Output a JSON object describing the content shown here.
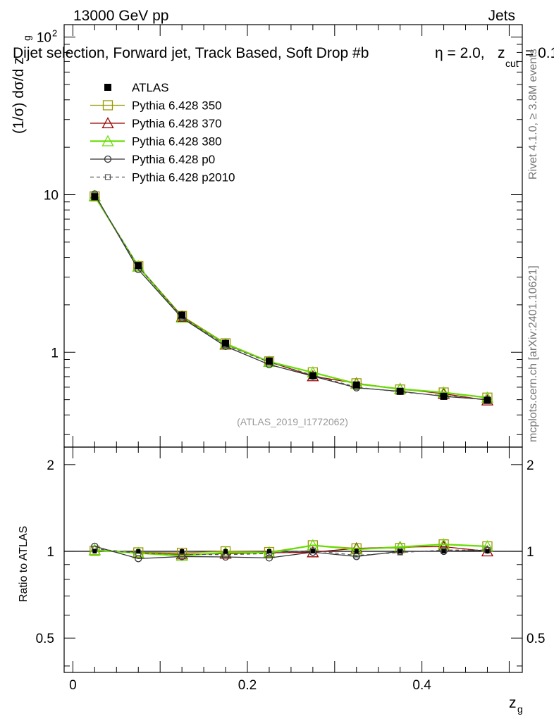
{
  "header": {
    "left": "13000 GeV pp",
    "right": "Jets",
    "selection": "Dijet selection, Forward jet, Track Based, Soft Drop #b",
    "param_eta": "η = 2.0,",
    "param_z": "z",
    "param_z_sub": "cut",
    "param_z_val": "= 0.1"
  },
  "side_labels": {
    "rivet": "Rivet 4.1.0, ≥ 3.8M events",
    "mcplots": "mcplots.cern.ch [arXiv:2401.10621]"
  },
  "watermark": "(ATLAS_2019_I1772062)",
  "axes": {
    "ylabel_main": "(1/σ) dσ/d z",
    "ylabel_main_sub": "g",
    "ylabel_ratio": "Ratio to ATLAS",
    "xlabel": "z",
    "xlabel_sub": "g",
    "yticks_main": [
      {
        "value": 1,
        "label": "1"
      },
      {
        "value": 10,
        "label": "10"
      },
      {
        "value": 100,
        "label": "10",
        "sup": "2"
      }
    ],
    "yticks_ratio": [
      {
        "value": 0.5,
        "label": "0.5"
      },
      {
        "value": 1,
        "label": "1"
      },
      {
        "value": 2,
        "label": "2"
      }
    ],
    "xticks": [
      {
        "value": 0,
        "label": "0"
      },
      {
        "value": 0.2,
        "label": "0.2"
      },
      {
        "value": 0.4,
        "label": "0.4"
      }
    ]
  },
  "legend": [
    {
      "label": "ATLAS",
      "color": "#000000",
      "marker": "filled-square",
      "line": "none"
    },
    {
      "label": "Pythia 6.428 350",
      "color": "#999900",
      "marker": "open-square",
      "line": "solid"
    },
    {
      "label": "Pythia 6.428 370",
      "color": "#990000",
      "marker": "open-triangle",
      "line": "solid"
    },
    {
      "label": "Pythia 6.428 380",
      "color": "#66dd00",
      "marker": "open-triangle",
      "line": "solid"
    },
    {
      "label": "Pythia 6.428 p0",
      "color": "#333333",
      "marker": "open-circle",
      "line": "solid"
    },
    {
      "label": "Pythia 6.428 p2010",
      "color": "#555555",
      "marker": "open-small-square",
      "line": "dashed"
    }
  ],
  "chart_data": {
    "type": "line",
    "title": "Dijet selection, Forward jet, Track Based, Soft Drop #b η = 2.0, z_cut = 0.1",
    "xlabel": "z_g",
    "ylabel": "(1/σ) dσ/d z_g",
    "xlim": [
      -0.01,
      0.515
    ],
    "ylim": [
      0.25,
      120
    ],
    "yscale": "log",
    "ratio_ylim": [
      0.38,
      2.3
    ],
    "ratio_ylabel": "Ratio to ATLAS",
    "x": [
      0.025,
      0.075,
      0.125,
      0.175,
      0.225,
      0.275,
      0.325,
      0.375,
      0.425,
      0.475
    ],
    "series": [
      {
        "name": "ATLAS",
        "values": [
          9.7,
          3.55,
          1.72,
          1.14,
          0.88,
          0.71,
          0.62,
          0.565,
          0.525,
          0.495
        ]
      },
      {
        "name": "Pythia 6.428 350",
        "values": [
          9.75,
          3.52,
          1.7,
          1.14,
          0.875,
          0.745,
          0.635,
          0.58,
          0.555,
          0.515
        ]
      },
      {
        "name": "Pythia 6.428 370",
        "values": [
          9.8,
          3.5,
          1.68,
          1.12,
          0.87,
          0.705,
          0.635,
          0.585,
          0.545,
          0.495
        ]
      },
      {
        "name": "Pythia 6.428 380",
        "values": [
          9.8,
          3.5,
          1.66,
          1.13,
          0.87,
          0.745,
          0.63,
          0.585,
          0.555,
          0.515
        ]
      },
      {
        "name": "Pythia 6.428 p0",
        "values": [
          10.1,
          3.35,
          1.65,
          1.09,
          0.835,
          0.705,
          0.595,
          0.565,
          0.525,
          0.5
        ]
      },
      {
        "name": "Pythia 6.428 p2010",
        "values": [
          9.9,
          3.5,
          1.68,
          1.11,
          0.865,
          0.715,
          0.6,
          0.56,
          0.53,
          0.5
        ]
      }
    ]
  }
}
